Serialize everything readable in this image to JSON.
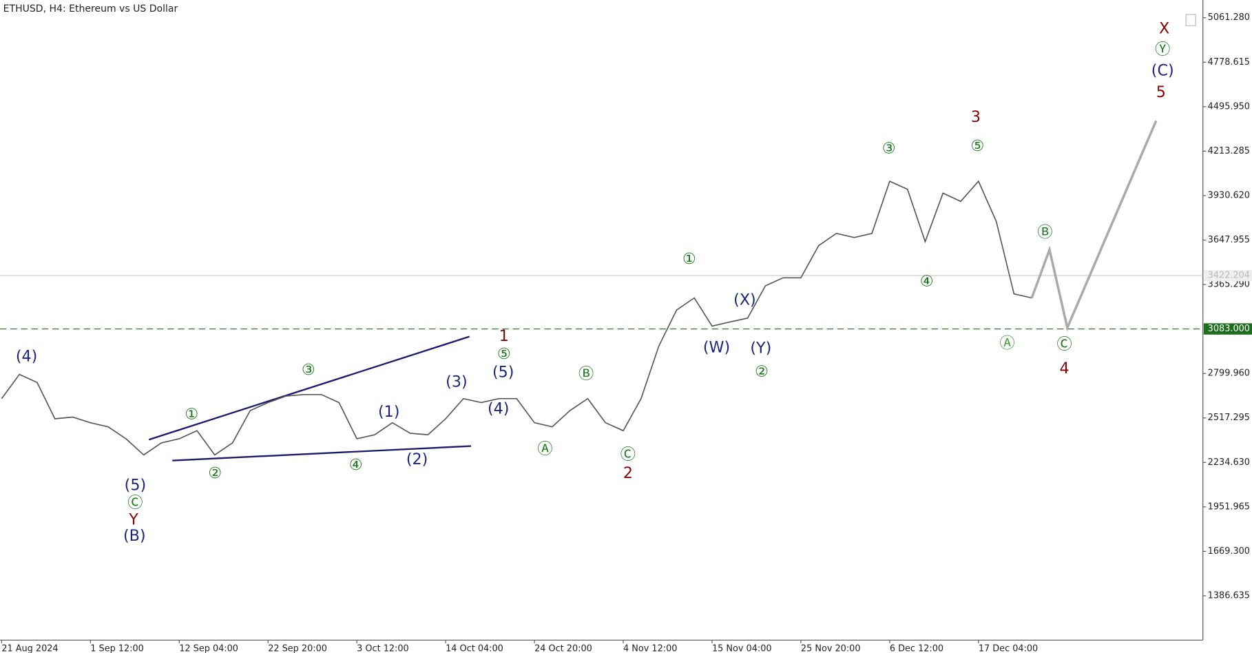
{
  "chart_data": {
    "type": "line",
    "title": "ETHUSD, H4:  Ethereum vs US Dollar",
    "categories": [
      "21 Aug 2024",
      null,
      null,
      null,
      null,
      "1 Sep 12:00",
      null,
      null,
      null,
      null,
      "12 Sep 04:00",
      null,
      null,
      null,
      null,
      "22 Sep 20:00",
      null,
      null,
      null,
      null,
      "3 Oct 12:00",
      null,
      null,
      null,
      null,
      "14 Oct 04:00",
      null,
      null,
      null,
      null,
      "24 Oct 20:00",
      null,
      null,
      null,
      null,
      "4 Nov 12:00",
      null,
      null,
      null,
      null,
      "15 Nov 04:00",
      null,
      null,
      null,
      null,
      "25 Nov 20:00",
      null,
      null,
      null,
      null,
      "6 Dec 12:00",
      null,
      null,
      null,
      null,
      "17 Dec 04:00",
      null,
      null,
      null,
      null,
      null,
      null,
      null,
      null,
      null,
      null
    ],
    "series": [
      {
        "color": "#555555",
        "values": [
          2640,
          2794,
          2743,
          2512,
          2523,
          2487,
          2461,
          2385,
          2282,
          2359,
          2385,
          2436,
          2282,
          2359,
          2564,
          2615,
          2656,
          2666,
          2666,
          2615,
          2385,
          2410,
          2487,
          2420,
          2410,
          2512,
          2640,
          2615,
          2640,
          2640,
          2487,
          2461,
          2564,
          2640,
          2487,
          2436,
          2640,
          2973,
          3203,
          3280,
          3101,
          3127,
          3152,
          3357,
          3408,
          3408,
          3613,
          3690,
          3664,
          3690,
          4022,
          3971,
          3638,
          3946,
          3894,
          4022,
          3766,
          3306,
          3280,
          null,
          null,
          null,
          null,
          null,
          null,
          null
        ]
      },
      {
        "color": "#aaaaaa",
        "values": [
          null,
          null,
          null,
          null,
          null,
          null,
          null,
          null,
          null,
          null,
          null,
          null,
          null,
          null,
          null,
          null,
          null,
          null,
          null,
          null,
          null,
          null,
          null,
          null,
          null,
          null,
          null,
          null,
          null,
          null,
          null,
          null,
          null,
          null,
          null,
          null,
          null,
          null,
          null,
          null,
          null,
          null,
          null,
          null,
          null,
          null,
          null,
          null,
          null,
          null,
          null,
          null,
          null,
          null,
          null,
          null,
          null,
          null,
          3280,
          3587,
          3091,
          3354,
          3617,
          3880,
          4143,
          4406
        ]
      }
    ],
    "ylim": [
      1105,
      5174
    ],
    "yticks": [
      {
        "value": 5061.28,
        "label": "5061.280"
      },
      {
        "value": 4778.615,
        "label": "4778.615"
      },
      {
        "value": 4495.95,
        "label": "4495.950"
      },
      {
        "value": 4213.285,
        "label": "4213.285"
      },
      {
        "value": 3930.62,
        "label": "3930.620"
      },
      {
        "value": 3647.955,
        "label": "3647.955"
      },
      {
        "value": 3365.29,
        "label": "3365.290"
      },
      {
        "value": 2799.96,
        "label": "2799.960"
      },
      {
        "value": 2517.295,
        "label": "2517.295"
      },
      {
        "value": 2234.63,
        "label": "2234.630"
      },
      {
        "value": 1951.965,
        "label": "1951.965"
      },
      {
        "value": 1669.3,
        "label": "1669.300"
      },
      {
        "value": 1386.635,
        "label": "1386.635"
      }
    ],
    "current_price": {
      "value": 3422.204,
      "label": "3422.204"
    },
    "level": {
      "value": 3083,
      "label": "3083.000",
      "color": "#1b6e1b"
    },
    "annotations": [
      {
        "text": "(4)",
        "color": "#1a237e"
      },
      {
        "text": "(5)",
        "color": "#1a237e"
      },
      {
        "text": "Ⓒ",
        "color": "#1b7a1b"
      },
      {
        "text": "Y",
        "color": "#8b0000"
      },
      {
        "text": "(B)",
        "color": "#1a237e"
      },
      {
        "text": "①",
        "color": "#1b7a1b"
      },
      {
        "text": "②",
        "color": "#1b7a1b"
      },
      {
        "text": "③",
        "color": "#1b7a1b"
      },
      {
        "text": "④",
        "color": "#1b7a1b"
      },
      {
        "text": "(1)",
        "color": "#1a237e"
      },
      {
        "text": "(2)",
        "color": "#1a237e"
      },
      {
        "text": "(3)",
        "color": "#1a237e"
      },
      {
        "text": "(4)",
        "color": "#1a237e"
      },
      {
        "text": "(5)",
        "color": "#1a237e"
      },
      {
        "text": "⑤",
        "color": "#1b7a1b"
      },
      {
        "text": "1",
        "color": "#8b0000"
      },
      {
        "text": "Ⓐ",
        "color": "#1b7a1b"
      },
      {
        "text": "Ⓑ",
        "color": "#1b7a1b"
      },
      {
        "text": "Ⓒ",
        "color": "#1b7a1b"
      },
      {
        "text": "2",
        "color": "#8b0000"
      },
      {
        "text": "①",
        "color": "#1b7a1b"
      },
      {
        "text": "(X)",
        "color": "#1a237e"
      },
      {
        "text": "(W)",
        "color": "#1a237e"
      },
      {
        "text": "(Y)",
        "color": "#1a237e"
      },
      {
        "text": "②",
        "color": "#1b7a1b"
      },
      {
        "text": "③",
        "color": "#1b7a1b"
      },
      {
        "text": "⑤",
        "color": "#1b7a1b"
      },
      {
        "text": "3",
        "color": "#8b0000"
      },
      {
        "text": "④",
        "color": "#1b7a1b"
      },
      {
        "text": "Ⓐ",
        "color": "#3aa03a"
      },
      {
        "text": "Ⓑ",
        "color": "#1b7a1b"
      },
      {
        "text": "Ⓒ",
        "color": "#1b7a1b"
      },
      {
        "text": "4",
        "color": "#8b0000"
      },
      {
        "text": "5",
        "color": "#8b0000"
      },
      {
        "text": "(C)",
        "color": "#1a237e"
      },
      {
        "text": "Ⓨ",
        "color": "#1b7a1b"
      },
      {
        "text": "X",
        "color": "#8b0000"
      }
    ]
  }
}
